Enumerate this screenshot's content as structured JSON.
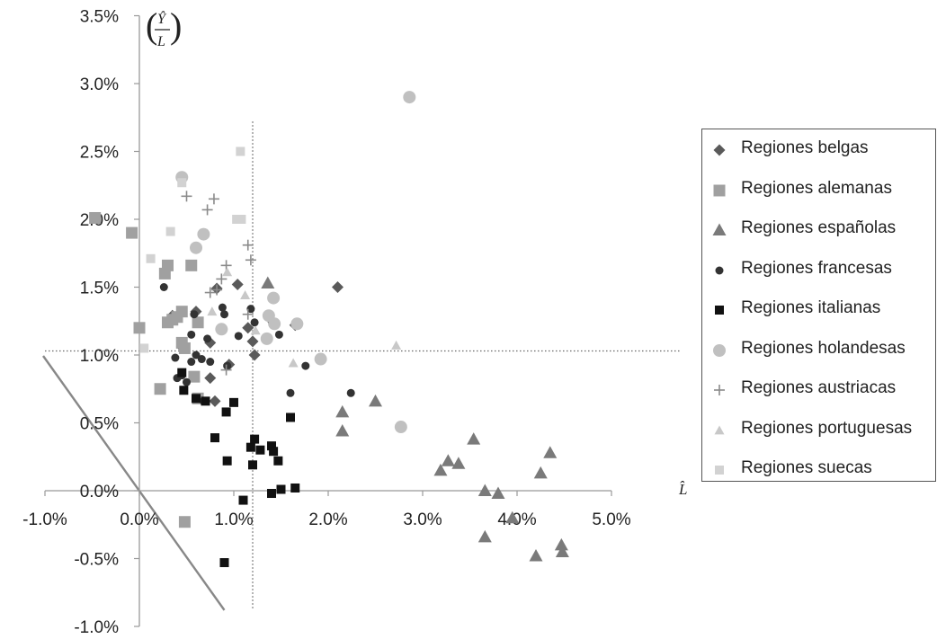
{
  "chart_data": {
    "type": "scatter",
    "title": "",
    "xlabel": "L̂",
    "ylabel": "(Ŷ / L)",
    "ylabel_num": "Ŷ",
    "ylabel_den": "L",
    "xlim": [
      -1.0,
      5.0
    ],
    "ylim": [
      -1.0,
      3.5
    ],
    "x_ticks": [
      -1.0,
      0.0,
      1.0,
      2.0,
      3.0,
      4.0,
      5.0
    ],
    "y_ticks": [
      -1.0,
      -0.5,
      0.0,
      0.5,
      1.0,
      1.5,
      2.0,
      2.5,
      3.0,
      3.5
    ],
    "x_tick_labels": [
      "-1.0%",
      "0.0%",
      "1.0%",
      "2.0%",
      "3.0%",
      "4.0%",
      "5.0%"
    ],
    "y_tick_labels": [
      "-1.0%",
      "-0.5%",
      "0.0%",
      "0.5%",
      "1.0%",
      "1.5%",
      "2.0%",
      "2.5%",
      "3.0%",
      "3.5%"
    ],
    "grid": false,
    "legend_position": "right",
    "reference_lines": {
      "vertical_dotted_x": 1.2,
      "horizontal_dotted_y": 1.03,
      "diagonal": [
        [
          -1.0,
          1.0
        ],
        [
          0.9,
          -0.88
        ]
      ]
    },
    "series": [
      {
        "name": "Regiones belgas",
        "marker": "diamond",
        "color": "#5a5a5a",
        "points": [
          [
            0.6,
            1.32
          ],
          [
            0.82,
            1.49
          ],
          [
            1.04,
            1.52
          ],
          [
            1.15,
            1.2
          ],
          [
            1.2,
            1.1
          ],
          [
            1.22,
            1.0
          ],
          [
            1.65,
            1.22
          ],
          [
            2.1,
            1.5
          ],
          [
            0.75,
            1.09
          ],
          [
            0.75,
            0.83
          ],
          [
            0.8,
            0.66
          ],
          [
            0.95,
            0.93
          ],
          [
            0.45,
            1.06
          ],
          [
            0.35,
            1.29
          ]
        ]
      },
      {
        "name": "Regiones alemanas",
        "marker": "square",
        "color": "#a0a0a0",
        "points": [
          [
            -0.47,
            2.01
          ],
          [
            -0.08,
            1.9
          ],
          [
            0.27,
            1.6
          ],
          [
            0.3,
            1.66
          ],
          [
            0.55,
            1.66
          ],
          [
            0.3,
            1.24
          ],
          [
            0.35,
            1.26
          ],
          [
            0.4,
            1.28
          ],
          [
            0.45,
            1.32
          ],
          [
            0.45,
            1.09
          ],
          [
            0.48,
            1.05
          ],
          [
            0.62,
            1.24
          ],
          [
            0.58,
            0.84
          ],
          [
            0.22,
            0.75
          ],
          [
            0.62,
            0.68
          ],
          [
            0.0,
            1.2
          ],
          [
            0.48,
            -0.23
          ]
        ]
      },
      {
        "name": "Regiones españolas",
        "marker": "triangle",
        "color": "#7a7a7a",
        "points": [
          [
            1.36,
            1.53
          ],
          [
            2.15,
            0.58
          ],
          [
            2.15,
            0.44
          ],
          [
            2.5,
            0.66
          ],
          [
            3.19,
            0.15
          ],
          [
            3.27,
            0.22
          ],
          [
            3.38,
            0.2
          ],
          [
            3.54,
            0.38
          ],
          [
            3.66,
            0.0
          ],
          [
            3.66,
            -0.34
          ],
          [
            3.8,
            -0.02
          ],
          [
            3.95,
            -0.2
          ],
          [
            4.25,
            0.13
          ],
          [
            4.35,
            0.28
          ],
          [
            4.2,
            -0.48
          ],
          [
            4.47,
            -0.4
          ],
          [
            4.48,
            -0.45
          ]
        ]
      },
      {
        "name": "Regiones francesas",
        "marker": "circle",
        "color": "#333333",
        "points": [
          [
            0.26,
            1.5
          ],
          [
            0.55,
            1.15
          ],
          [
            0.58,
            1.3
          ],
          [
            0.72,
            1.12
          ],
          [
            0.88,
            1.35
          ],
          [
            0.9,
            1.3
          ],
          [
            1.18,
            1.34
          ],
          [
            1.22,
            1.24
          ],
          [
            1.05,
            1.14
          ],
          [
            0.6,
            1.0
          ],
          [
            0.66,
            0.97
          ],
          [
            0.75,
            0.95
          ],
          [
            0.55,
            0.95
          ],
          [
            0.4,
            0.83
          ],
          [
            0.5,
            0.8
          ],
          [
            0.68,
            0.66
          ],
          [
            0.93,
            0.92
          ],
          [
            0.92,
            0.58
          ],
          [
            1.4,
            1.25
          ],
          [
            1.48,
            1.15
          ],
          [
            1.76,
            0.92
          ],
          [
            1.6,
            0.72
          ],
          [
            2.24,
            0.72
          ],
          [
            0.38,
            0.98
          ],
          [
            0.45,
            0.85
          ]
        ]
      },
      {
        "name": "Regiones italianas",
        "marker": "square-small",
        "color": "#111111",
        "points": [
          [
            0.45,
            0.87
          ],
          [
            0.47,
            0.74
          ],
          [
            0.6,
            0.68
          ],
          [
            0.7,
            0.66
          ],
          [
            0.92,
            0.58
          ],
          [
            1.0,
            0.65
          ],
          [
            0.8,
            0.39
          ],
          [
            0.93,
            0.22
          ],
          [
            1.18,
            0.32
          ],
          [
            1.22,
            0.38
          ],
          [
            1.28,
            0.3
          ],
          [
            1.2,
            0.19
          ],
          [
            1.4,
            0.33
          ],
          [
            1.42,
            0.29
          ],
          [
            1.47,
            0.22
          ],
          [
            1.6,
            0.54
          ],
          [
            1.1,
            -0.07
          ],
          [
            1.4,
            -0.02
          ],
          [
            1.5,
            0.01
          ],
          [
            1.65,
            0.02
          ],
          [
            0.9,
            -0.53
          ]
        ]
      },
      {
        "name": "Regiones holandesas",
        "marker": "circle-large",
        "color": "#c0c0c0",
        "points": [
          [
            0.45,
            2.31
          ],
          [
            0.6,
            1.79
          ],
          [
            0.68,
            1.89
          ],
          [
            1.37,
            1.29
          ],
          [
            1.42,
            1.42
          ],
          [
            1.43,
            1.23
          ],
          [
            1.67,
            1.23
          ],
          [
            1.35,
            1.12
          ],
          [
            0.87,
            1.19
          ],
          [
            1.92,
            0.97
          ],
          [
            2.77,
            0.47
          ],
          [
            2.86,
            2.9
          ]
        ]
      },
      {
        "name": "Regiones austriacas",
        "marker": "plus",
        "color": "#8a8a8a",
        "points": [
          [
            0.5,
            2.17
          ],
          [
            0.79,
            2.15
          ],
          [
            0.72,
            2.07
          ],
          [
            1.15,
            1.81
          ],
          [
            1.18,
            1.7
          ],
          [
            0.92,
            1.66
          ],
          [
            0.75,
            1.46
          ],
          [
            0.82,
            1.48
          ],
          [
            0.87,
            1.56
          ],
          [
            1.15,
            1.3
          ],
          [
            0.92,
            0.89
          ]
        ]
      },
      {
        "name": "Regiones portuguesas",
        "marker": "triangle-small",
        "color": "#c8c8c8",
        "points": [
          [
            0.93,
            1.61
          ],
          [
            1.12,
            1.44
          ],
          [
            0.77,
            1.32
          ],
          [
            1.23,
            1.18
          ],
          [
            1.63,
            0.94
          ],
          [
            2.72,
            1.07
          ]
        ]
      },
      {
        "name": "Regiones suecas",
        "marker": "square-small",
        "color": "#d2d2d2",
        "points": [
          [
            1.07,
            2.5
          ],
          [
            1.03,
            2.0
          ],
          [
            1.08,
            2.0
          ],
          [
            0.45,
            2.27
          ],
          [
            0.33,
            1.91
          ],
          [
            0.12,
            1.71
          ],
          [
            0.05,
            1.05
          ]
        ]
      }
    ]
  }
}
